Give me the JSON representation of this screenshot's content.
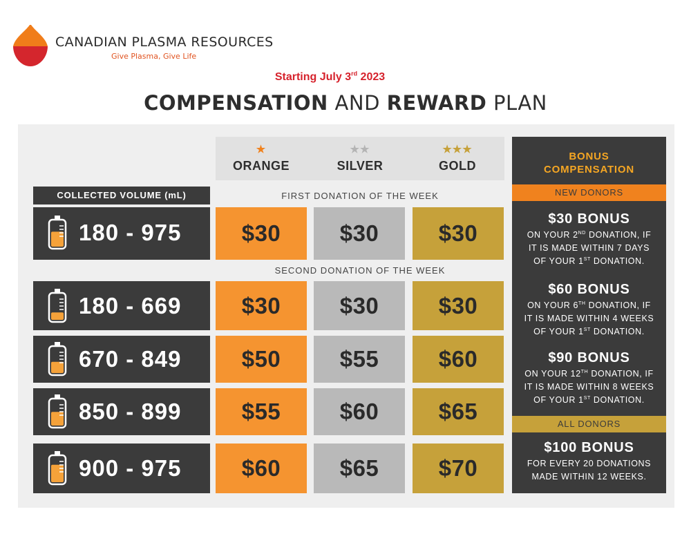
{
  "brand": {
    "name": "CANADIAN PLASMA RESOURCES",
    "tagline": "Give Plasma, Give Life",
    "colors": {
      "top": "#f07d1a",
      "bottom": "#d4262d"
    }
  },
  "start_date": {
    "prefix": "Starting July 3",
    "ordinal": "rd",
    "year": " 2023"
  },
  "title": {
    "part1": "COMPENSATION",
    "part2": " AND ",
    "part3": "REWARD",
    "part4": " PLAN"
  },
  "tiers": [
    {
      "stars": "★",
      "name": "ORANGE",
      "star_color": "#f0821e"
    },
    {
      "stars": "★★",
      "name": "SILVER",
      "star_color": "#b4b4b4"
    },
    {
      "stars": "★★★",
      "name": "GOLD",
      "star_color": "#c6a13a"
    }
  ],
  "volume_header": "COLLECTED VOLUME (mL)",
  "sections": {
    "first": "FIRST DONATION OF THE WEEK",
    "second": "SECOND DONATION OF THE WEEK"
  },
  "rows": [
    {
      "volume": "180 - 975",
      "orange": "$30",
      "silver": "$30",
      "gold": "$30",
      "fill": 0.6
    },
    {
      "volume": "180 - 669",
      "orange": "$30",
      "silver": "$30",
      "gold": "$30",
      "fill": 0.3
    },
    {
      "volume": "670 - 849",
      "orange": "$50",
      "silver": "$55",
      "gold": "$60",
      "fill": 0.45
    },
    {
      "volume": "850 - 899",
      "orange": "$55",
      "silver": "$60",
      "gold": "$65",
      "fill": 0.55
    },
    {
      "volume": "900 - 975",
      "orange": "$60",
      "silver": "$65",
      "gold": "$70",
      "fill": 0.7
    }
  ],
  "bonus": {
    "title_line1": "BONUS",
    "title_line2": "COMPENSATION",
    "new_donors": "NEW DONORS",
    "all_donors": "ALL DONORS",
    "items": [
      {
        "heading": "$30 BONUS",
        "l1a": "ON YOUR 2",
        "l1sup": "ND",
        "l1b": " DONATION, IF",
        "l2": "IT IS MADE WITHIN 7 DAYS",
        "l3a": "OF YOUR 1",
        "l3sup": "ST",
        "l3b": " DONATION."
      },
      {
        "heading": "$60 BONUS",
        "l1a": "ON YOUR 6",
        "l1sup": "TH",
        "l1b": " DONATION, IF",
        "l2": "IT IS MADE WITHIN 4 WEEKS",
        "l3a": "OF YOUR 1",
        "l3sup": "ST",
        "l3b": " DONATION."
      },
      {
        "heading": "$90 BONUS",
        "l1a": "ON YOUR 12",
        "l1sup": "TH",
        "l1b": " DONATION, IF",
        "l2": "IT IS MADE WITHIN 8 WEEKS",
        "l3a": "OF YOUR 1",
        "l3sup": "ST",
        "l3b": " DONATION."
      }
    ],
    "all": {
      "heading": "$100 BONUS",
      "l1": "FOR EVERY 20 DONATIONS",
      "l2": "MADE WITHIN 12 WEEKS."
    }
  }
}
